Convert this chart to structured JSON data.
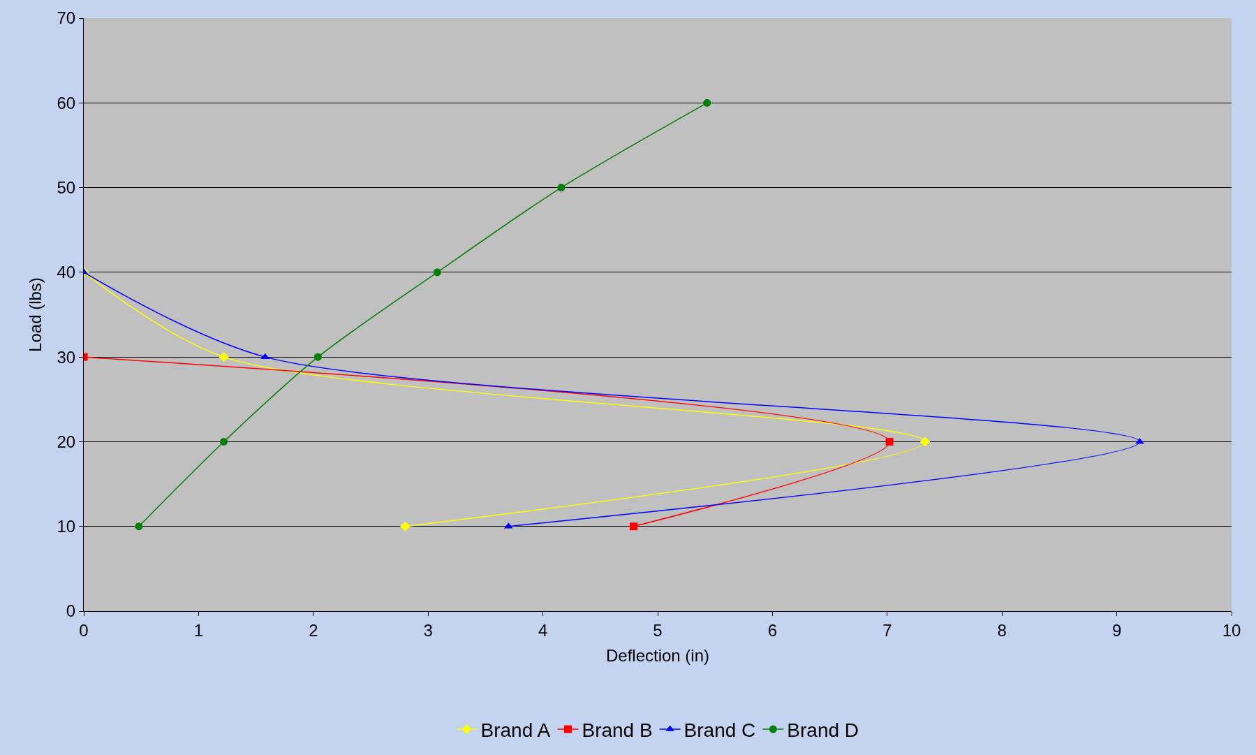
{
  "chart_data": {
    "type": "line",
    "xlabel": "Deflection (in)",
    "ylabel": "Load (lbs)",
    "xlim": [
      0,
      10
    ],
    "xticks": [
      0,
      1,
      2,
      3,
      4,
      5,
      6,
      7,
      8,
      9,
      10
    ],
    "ylim": [
      0,
      70
    ],
    "yticks": [
      0,
      10,
      20,
      30,
      40,
      50,
      60,
      70
    ],
    "grid": "y",
    "legend": "bottom",
    "line_style": "solid",
    "series": [
      {
        "name": "Brand A",
        "color": "#ffff00",
        "marker": "diamond",
        "x": [
          2.8,
          7.33,
          1.22,
          0
        ],
        "values": [
          10,
          20,
          30,
          40
        ]
      },
      {
        "name": "Brand B",
        "color": "#ff0000",
        "marker": "square",
        "x": [
          4.79,
          7.02,
          0
        ],
        "values": [
          10,
          20,
          30
        ]
      },
      {
        "name": "Brand C",
        "color": "#0000ff",
        "marker": "triangle",
        "x": [
          3.7,
          9.2,
          1.58,
          0
        ],
        "values": [
          10,
          20,
          30,
          40
        ]
      },
      {
        "name": "Brand D",
        "color": "#008000",
        "marker": "circle",
        "x": [
          0.48,
          1.22,
          2.04,
          3.08,
          4.16,
          5.43
        ],
        "values": [
          10,
          20,
          30,
          40,
          50,
          60
        ]
      }
    ]
  }
}
